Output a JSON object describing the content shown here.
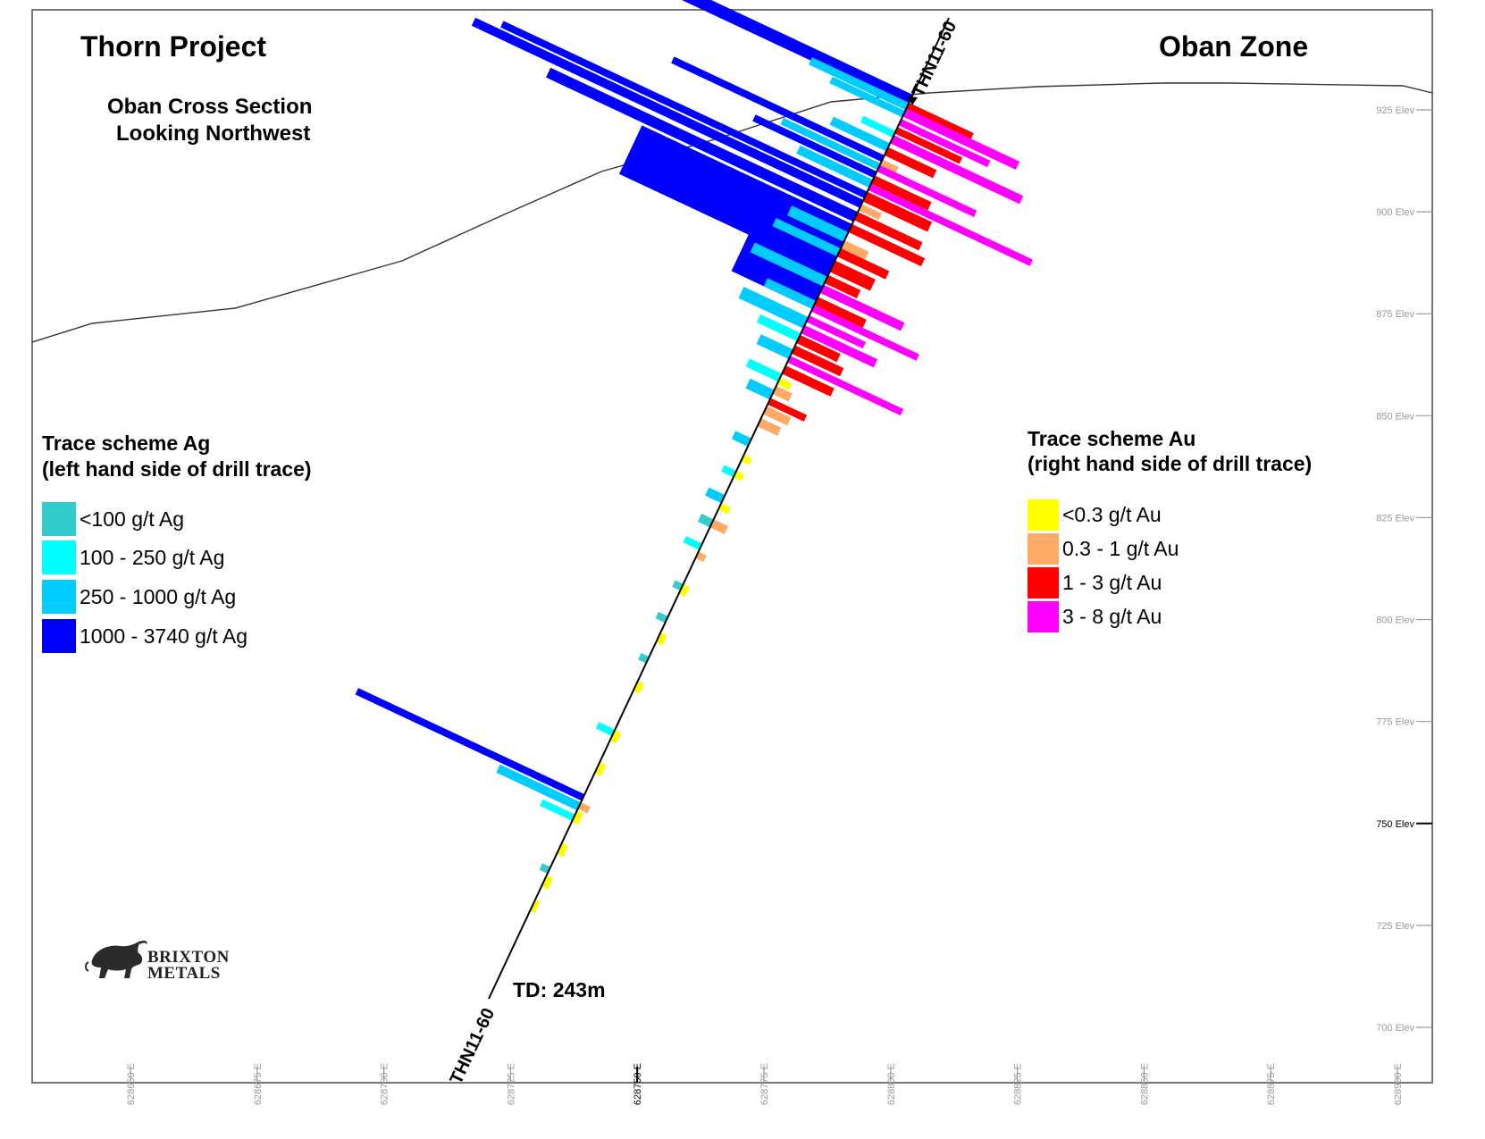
{
  "header": {
    "project_title": "Thorn Project",
    "zone_title": "Oban Zone",
    "section_line1": "Oban Cross Section",
    "section_line2": "Looking Northwest"
  },
  "drillhole": {
    "collar_label": "THN11-60",
    "toe_label": "THN11-60",
    "total_depth_label": "TD: 243m"
  },
  "legend_ag": {
    "title_line1": "Trace scheme Ag",
    "title_line2": "(left hand side of drill trace)",
    "items": [
      {
        "label": "<100 g/t Ag",
        "color": "#33cccc"
      },
      {
        "label": "100 - 250 g/t Ag",
        "color": "#00ffff"
      },
      {
        "label": "250 - 1000 g/t Ag",
        "color": "#00ccff"
      },
      {
        "label": "1000 -  3740 g/t Ag",
        "color": "#0000ff"
      }
    ]
  },
  "legend_au": {
    "title_line1": "Trace scheme Au",
    "title_line2": "(right hand side of drill trace)",
    "items": [
      {
        "label": "<0.3 g/t Au",
        "color": "#ffff00"
      },
      {
        "label": "0.3 - 1 g/t Au",
        "color": "#ffaa66"
      },
      {
        "label": "1 - 3 g/t Au",
        "color": "#ff0000"
      },
      {
        "label": "3 - 8 g/t Au",
        "color": "#ff00ff"
      }
    ]
  },
  "elevation_axis": [
    {
      "label": "925 Elev",
      "value": 925
    },
    {
      "label": "900 Elev",
      "value": 900
    },
    {
      "label": "875 Elev",
      "value": 875
    },
    {
      "label": "850 Elev",
      "value": 850
    },
    {
      "label": "825 Elev",
      "value": 825
    },
    {
      "label": "800 Elev",
      "value": 800
    },
    {
      "label": "775 Elev",
      "value": 775
    },
    {
      "label": "750 Elev",
      "value": 750,
      "major": true
    },
    {
      "label": "725 Elev",
      "value": 725
    },
    {
      "label": "700 Elev",
      "value": 700
    }
  ],
  "easting_axis": [
    {
      "label": "628650 E",
      "value": 628650
    },
    {
      "label": "628675 E",
      "value": 628675
    },
    {
      "label": "628700 E",
      "value": 628700
    },
    {
      "label": "628725 E",
      "value": 628725
    },
    {
      "label": "628750 E",
      "value": 628750,
      "major": true
    },
    {
      "label": "628775 E",
      "value": 628775
    },
    {
      "label": "628800 E",
      "value": 628800
    },
    {
      "label": "628825 E",
      "value": 628825
    },
    {
      "label": "628850 E",
      "value": 628850
    },
    {
      "label": "628875 E",
      "value": 628875
    },
    {
      "label": "628900 E",
      "value": 628900
    }
  ],
  "logo": {
    "line1": "BRIXTON",
    "line2": "METALS"
  },
  "colors": {
    "frame": "#777777",
    "grid_label": "#999999",
    "topography": "#333333",
    "trace": "#000000"
  }
}
